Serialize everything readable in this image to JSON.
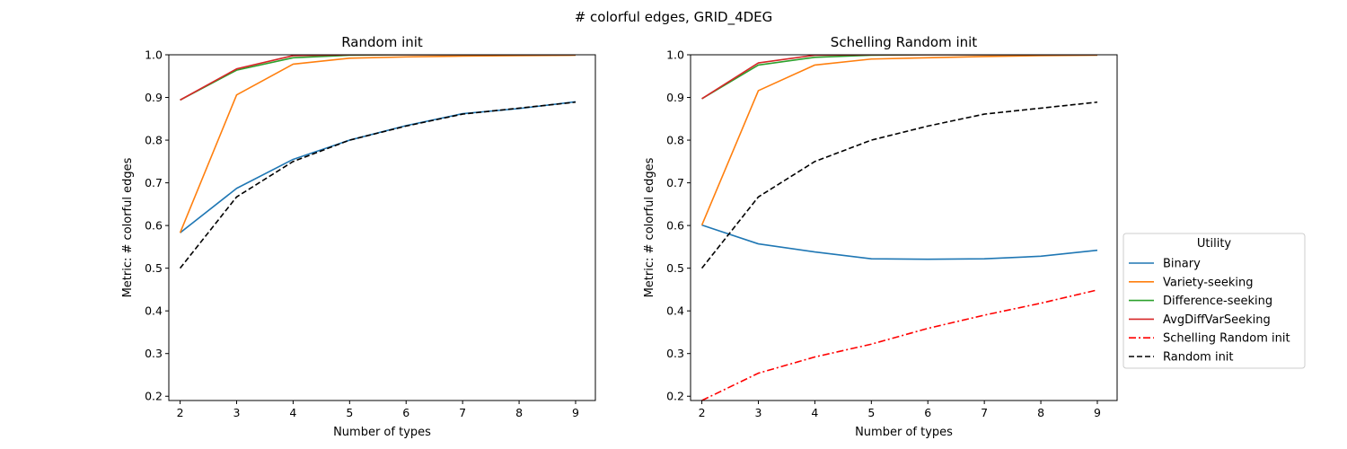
{
  "figure_title": "# colorful edges, GRID_4DEG",
  "chart_data": [
    {
      "type": "line",
      "title": "Random init",
      "xlabel": "Number of types",
      "ylabel": "Metric: # colorful edges",
      "xlim": [
        1.8,
        9.35
      ],
      "ylim": [
        0.19,
        1.0
      ],
      "xticks": [
        2,
        3,
        4,
        5,
        6,
        7,
        8,
        9
      ],
      "yticks": [
        0.2,
        0.3,
        0.4,
        0.5,
        0.6,
        0.7,
        0.8,
        0.9,
        1.0
      ],
      "x": [
        2,
        3,
        4,
        5,
        6,
        7,
        8,
        9
      ],
      "series": [
        {
          "name": "Binary",
          "color": "#1f77b4",
          "dash": "solid",
          "values": [
            0.583,
            0.687,
            0.755,
            0.8,
            0.834,
            0.862,
            0.874,
            0.89
          ]
        },
        {
          "name": "Variety-seeking",
          "color": "#ff7f0e",
          "dash": "solid",
          "values": [
            0.583,
            0.906,
            0.978,
            0.992,
            0.995,
            0.997,
            0.998,
            0.999
          ]
        },
        {
          "name": "Difference-seeking",
          "color": "#2ca02c",
          "dash": "solid",
          "values": [
            0.894,
            0.964,
            0.993,
            0.999,
            1.0,
            1.0,
            1.0,
            1.0
          ]
        },
        {
          "name": "AvgDiffVarSeeking",
          "color": "#d62728",
          "dash": "solid",
          "values": [
            0.894,
            0.967,
            0.998,
            1.0,
            1.0,
            1.0,
            1.0,
            1.0
          ]
        },
        {
          "name": "Random init",
          "color": "#000000",
          "dash": "dashed",
          "values": [
            0.5,
            0.667,
            0.75,
            0.8,
            0.833,
            0.861,
            0.875,
            0.889
          ]
        }
      ]
    },
    {
      "type": "line",
      "title": "Schelling Random init",
      "xlabel": "Number of types",
      "ylabel": "Metric: # colorful edges",
      "xlim": [
        1.8,
        9.35
      ],
      "ylim": [
        0.19,
        1.0
      ],
      "xticks": [
        2,
        3,
        4,
        5,
        6,
        7,
        8,
        9
      ],
      "yticks": [
        0.2,
        0.3,
        0.4,
        0.5,
        0.6,
        0.7,
        0.8,
        0.9,
        1.0
      ],
      "x": [
        2,
        3,
        4,
        5,
        6,
        7,
        8,
        9
      ],
      "series": [
        {
          "name": "Binary",
          "color": "#1f77b4",
          "dash": "solid",
          "values": [
            0.601,
            0.557,
            0.538,
            0.522,
            0.521,
            0.522,
            0.528,
            0.542
          ]
        },
        {
          "name": "Variety-seeking",
          "color": "#ff7f0e",
          "dash": "solid",
          "values": [
            0.601,
            0.916,
            0.976,
            0.99,
            0.993,
            0.996,
            0.998,
            0.999
          ]
        },
        {
          "name": "Difference-seeking",
          "color": "#2ca02c",
          "dash": "solid",
          "values": [
            0.897,
            0.976,
            0.994,
            0.999,
            1.0,
            1.0,
            1.0,
            1.0
          ]
        },
        {
          "name": "AvgDiffVarSeeking",
          "color": "#d62728",
          "dash": "solid",
          "values": [
            0.897,
            0.981,
            0.999,
            1.0,
            1.0,
            1.0,
            1.0,
            1.0
          ]
        },
        {
          "name": "Schelling Random init",
          "color": "#ff0000",
          "dash": "dashdot",
          "values": [
            0.19,
            0.254,
            0.292,
            0.322,
            0.359,
            0.39,
            0.418,
            0.449
          ]
        },
        {
          "name": "Random init",
          "color": "#000000",
          "dash": "dashed",
          "values": [
            0.5,
            0.667,
            0.75,
            0.8,
            0.833,
            0.861,
            0.875,
            0.889
          ]
        }
      ]
    }
  ],
  "legend": {
    "title": "Utility",
    "placement": "right of second plot",
    "entries": [
      {
        "label": "Binary",
        "color": "#1f77b4",
        "dash": "solid"
      },
      {
        "label": "Variety-seeking",
        "color": "#ff7f0e",
        "dash": "solid"
      },
      {
        "label": "Difference-seeking",
        "color": "#2ca02c",
        "dash": "solid"
      },
      {
        "label": "AvgDiffVarSeeking",
        "color": "#d62728",
        "dash": "solid"
      },
      {
        "label": "Schelling Random init",
        "color": "#ff0000",
        "dash": "dashdot"
      },
      {
        "label": "Random init",
        "color": "#000000",
        "dash": "dashed"
      }
    ]
  }
}
